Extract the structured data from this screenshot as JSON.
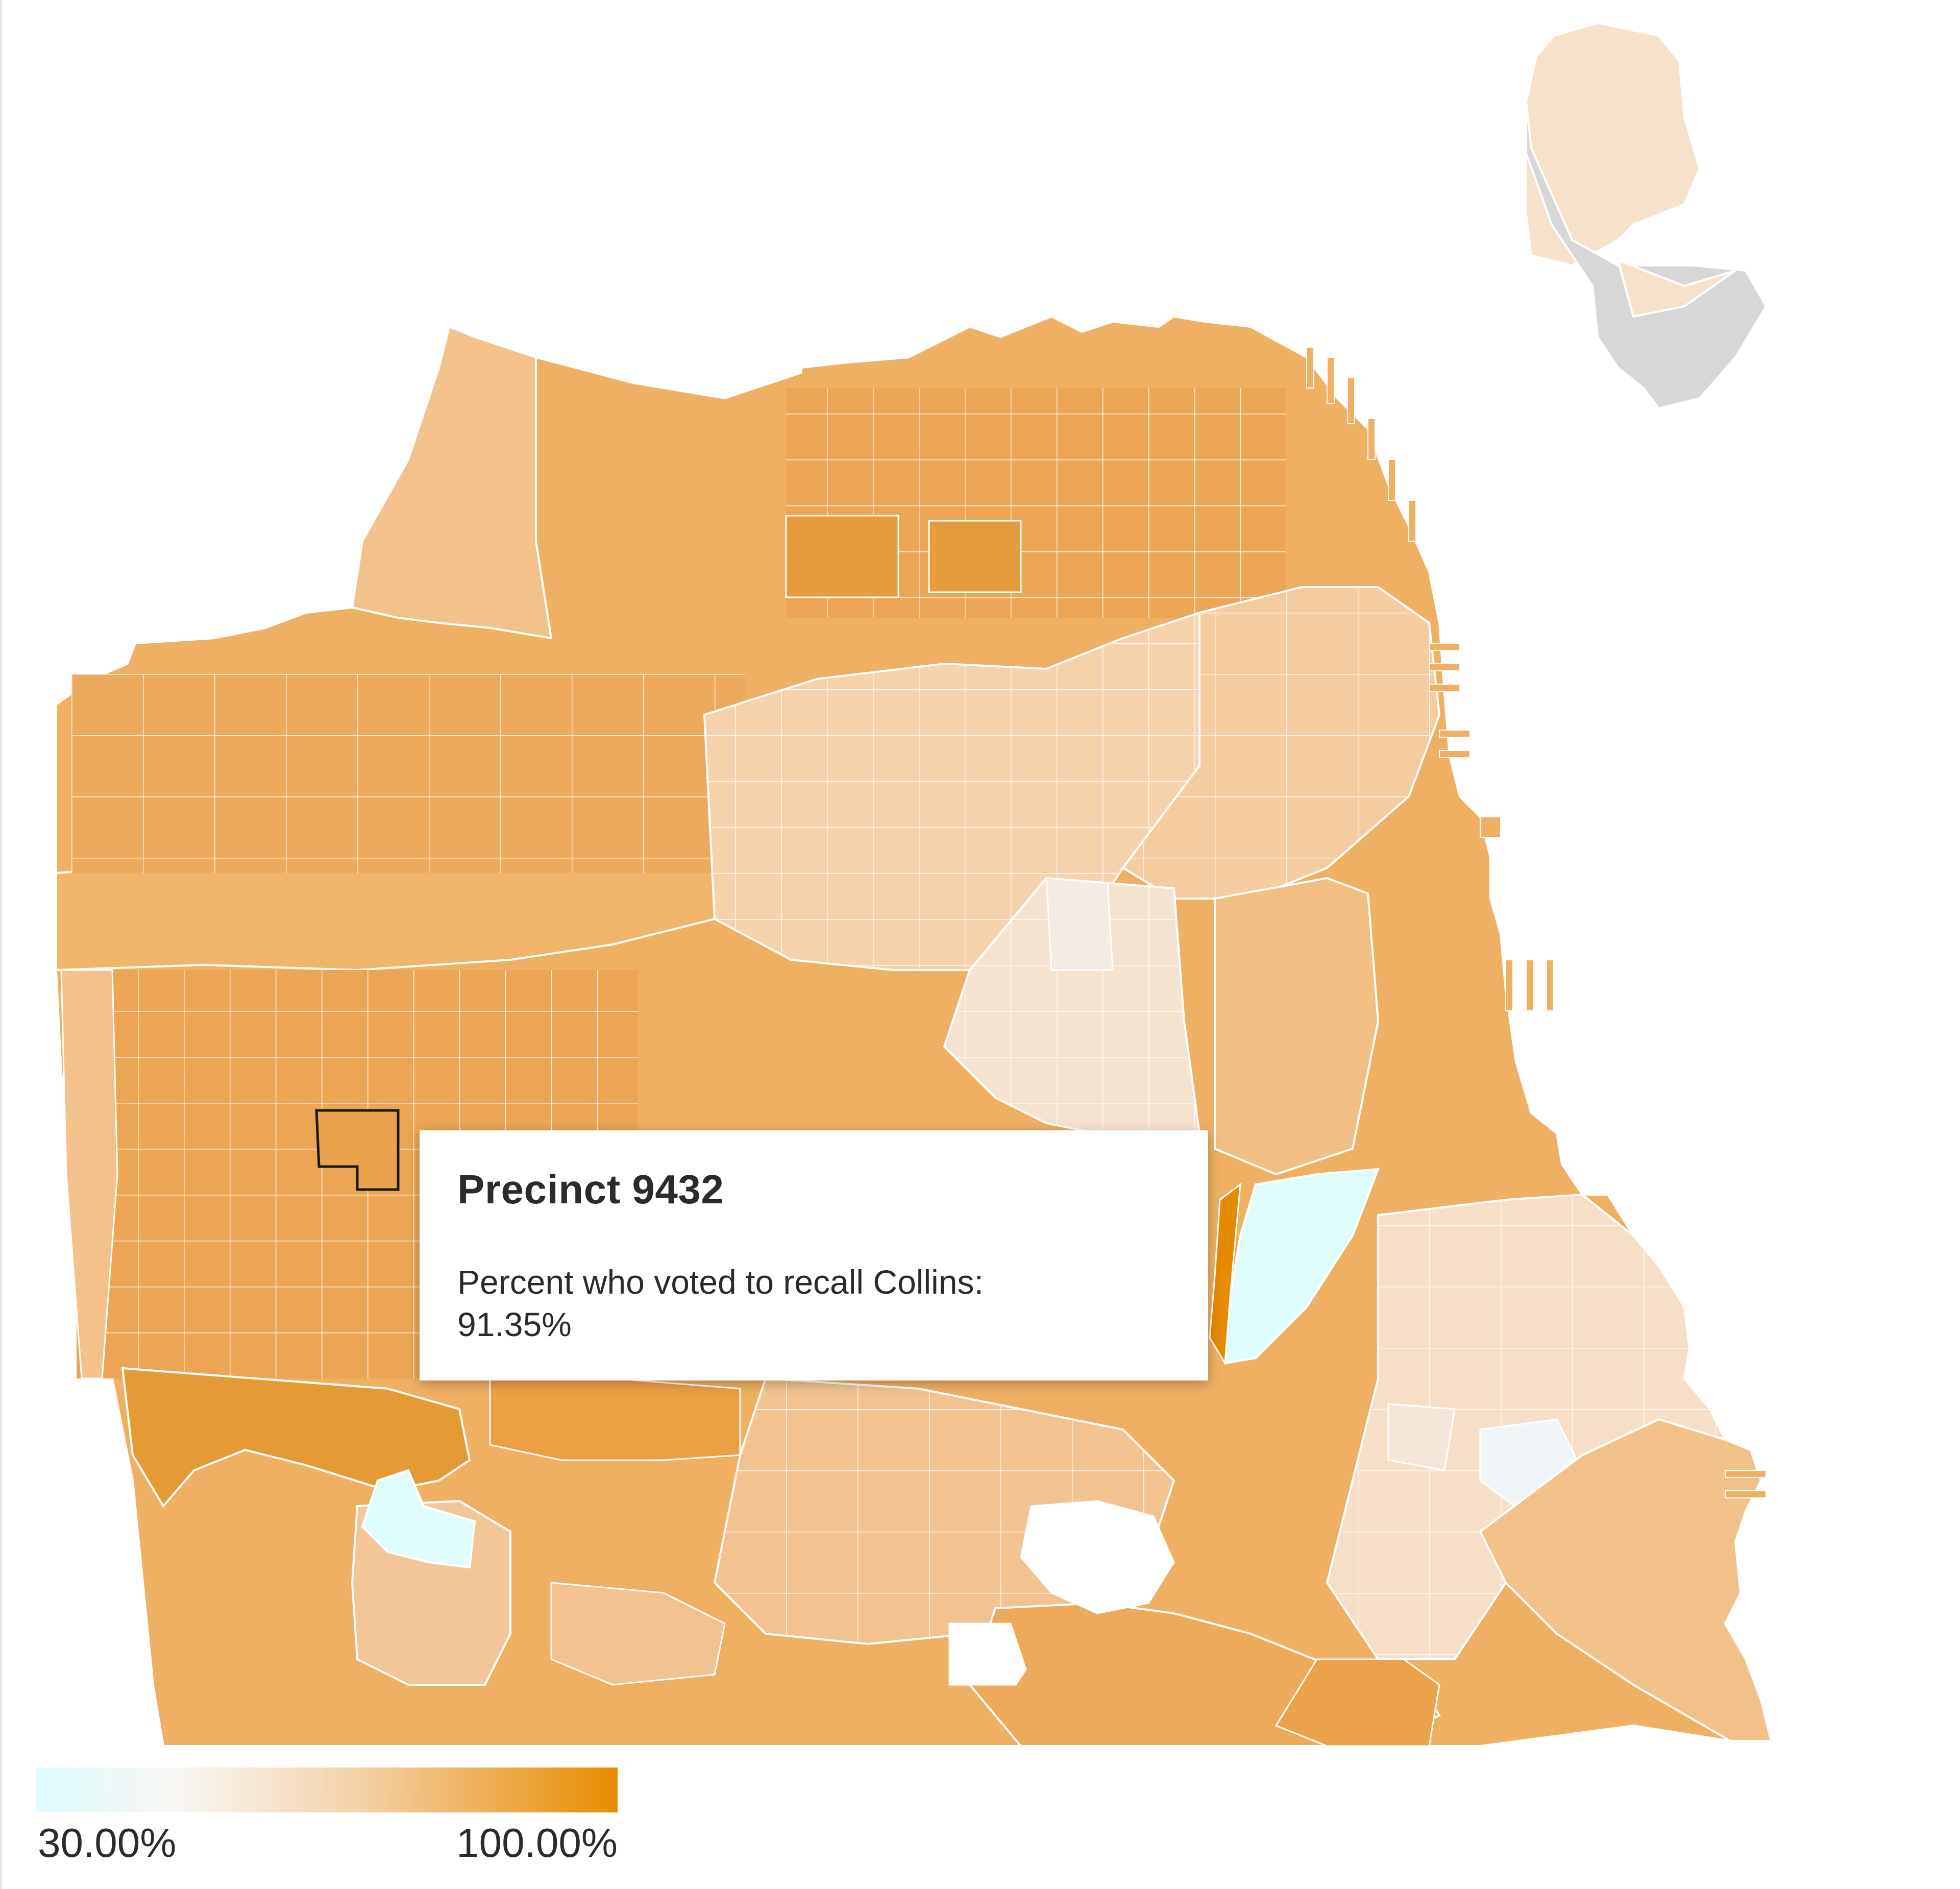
{
  "map": {
    "legend": {
      "min_label": "30.00%",
      "max_label": "100.00%",
      "min_value": 30,
      "max_value": 100,
      "color_low": "#dffdff",
      "color_mid": "#f6e3cc",
      "color_high": "#e88c00"
    },
    "highlighted_precinct": {
      "name": "Precinct 9432",
      "value": 91.35
    },
    "tooltip": {
      "title": "Precinct 9432",
      "label": "Percent who voted to recall Collins:",
      "value": "91.35%"
    },
    "colors": {
      "land_default": "#efb064",
      "land_light": "#f3c38d",
      "land_dark": "#e99a3a",
      "downtown_light": "#f6dcc0",
      "water_low": "#e0fcfd",
      "no_data": "#d7d7d7",
      "precinct_border": "#ffffff",
      "highlight_border": "#1a1a1a"
    }
  }
}
